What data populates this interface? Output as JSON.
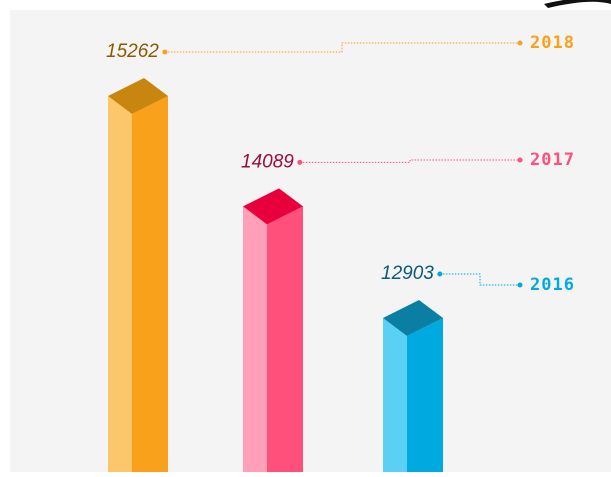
{
  "chart_data": {
    "type": "bar3d",
    "categories": [
      "2018",
      "2017",
      "2016"
    ],
    "values": [
      15262,
      14089,
      12903
    ],
    "colors": [
      "#f9a11b",
      "#ff4f7b",
      "#00a9e0"
    ]
  }
}
